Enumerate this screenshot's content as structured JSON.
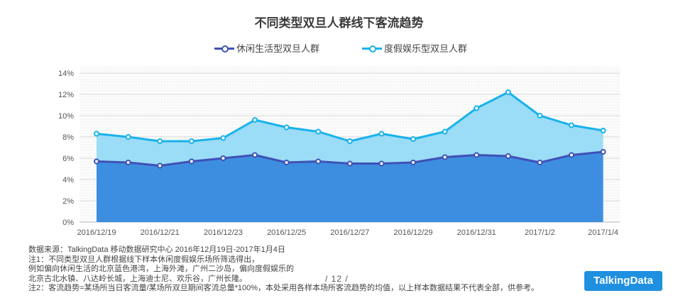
{
  "page": {
    "title": "不同类型双旦人群线下客流趋势",
    "page_number": "/ 12 /",
    "logo_text": "TalkingData",
    "notes": [
      "数据来源：TalkingData 移动数据研究中心  2016年12月19日-2017年1月4日",
      "注1：不同类型双旦人群根据线下样本休闲度假娱乐场所筛选得出，",
      "例如偏向休闲生活的北京蓝色港湾，上海外滩，广州二沙岛，偏向度假娱乐的",
      "北京古北水镇、八达岭长城，上海迪士尼、欢乐谷，广州长隆。",
      "注2：客流趋势=某场所当日客流量/某场所双旦期间客流总量*100%，本处采用各样本场所客流趋势的均值，以上样本数据结果不代表全部，供参考。"
    ]
  },
  "chart_data": {
    "type": "area",
    "title": "不同类型双旦人群线下客流趋势",
    "x": [
      "2016/12/19",
      "2016/12/20",
      "2016/12/21",
      "2016/12/22",
      "2016/12/23",
      "2016/12/24",
      "2016/12/25",
      "2016/12/26",
      "2016/12/27",
      "2016/12/28",
      "2016/12/29",
      "2016/12/30",
      "2016/12/31",
      "2017/1/1",
      "2017/1/2",
      "2017/1/3",
      "2017/1/4"
    ],
    "x_tick_labels": [
      "2016/12/19",
      "2016/12/21",
      "2016/12/23",
      "2016/12/25",
      "2016/12/27",
      "2016/12/29",
      "2016/12/31",
      "2017/1/2",
      "2017/1/4"
    ],
    "y_ticks": [
      "0%",
      "2%",
      "4%",
      "6%",
      "8%",
      "10%",
      "12%",
      "14%"
    ],
    "ylim": [
      0,
      14
    ],
    "grid": true,
    "legend_position": "top-center",
    "series": [
      {
        "name": "休闲生活型双旦人群",
        "color": "#3f51b5",
        "fill": "#3d8ee0",
        "values": [
          5.7,
          5.6,
          5.3,
          5.7,
          6.0,
          6.3,
          5.6,
          5.7,
          5.5,
          5.5,
          5.6,
          6.1,
          6.3,
          6.2,
          5.6,
          6.3,
          6.6
        ]
      },
      {
        "name": "度假娱乐型双旦人群",
        "color": "#19b2ea",
        "fill": "#9bdcf7",
        "values": [
          8.3,
          8.0,
          7.6,
          7.6,
          7.9,
          9.6,
          8.9,
          8.5,
          7.6,
          8.3,
          7.8,
          8.5,
          10.7,
          12.2,
          10.0,
          9.1,
          8.6
        ]
      }
    ]
  }
}
